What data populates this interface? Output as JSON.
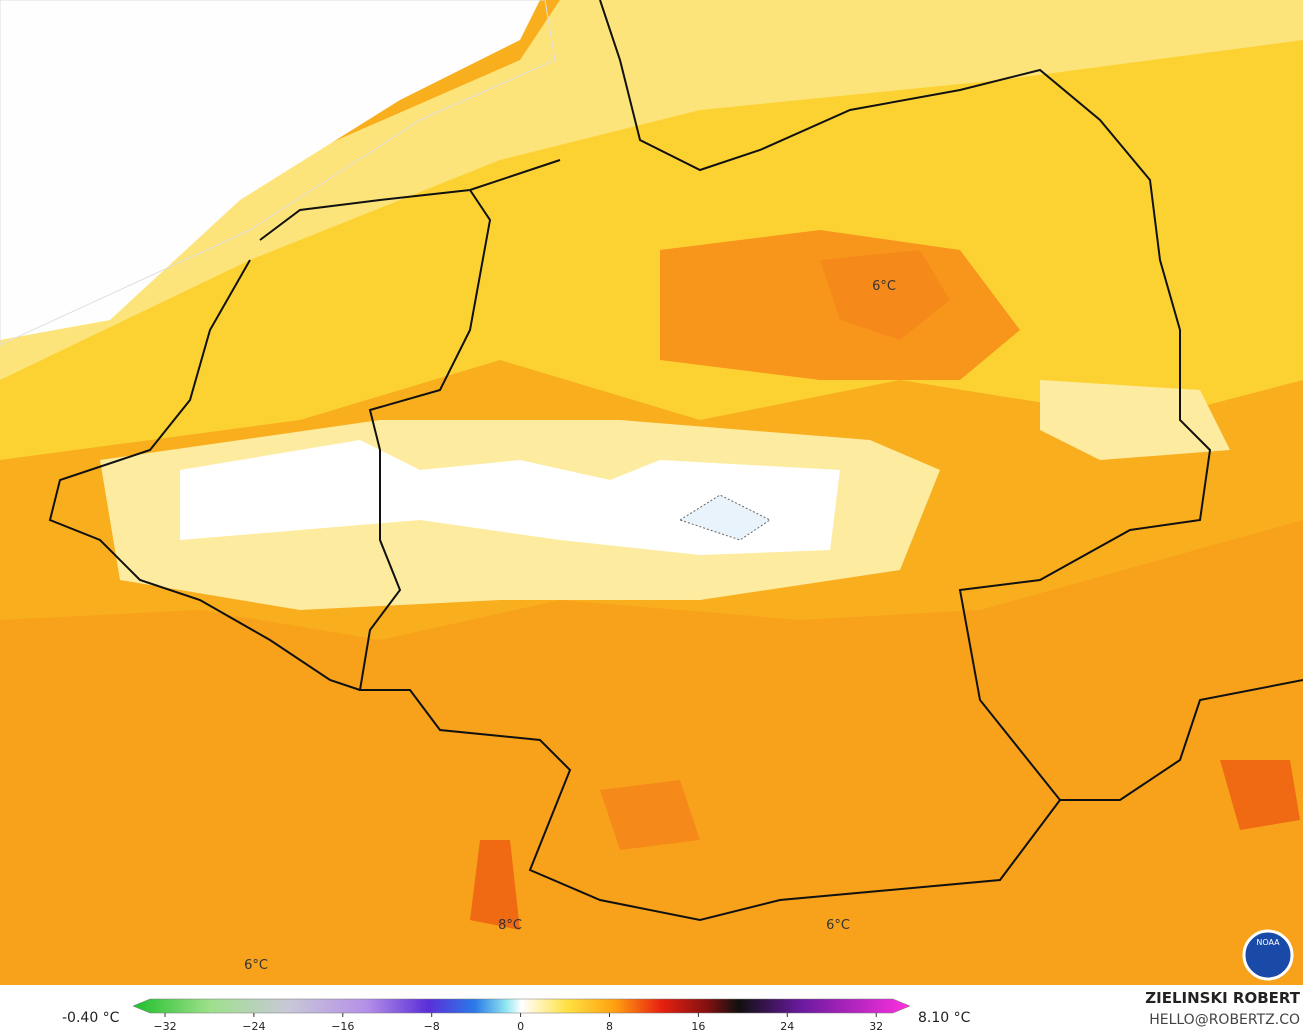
{
  "map": {
    "labels": [
      {
        "text": "6°C"
      },
      {
        "text": "8°C"
      },
      {
        "text": "6°C"
      },
      {
        "text": "6°C"
      }
    ]
  },
  "colorbar": {
    "min_label": "-0.40 °C",
    "max_label": "8.10 °C",
    "ticks": [
      "−32",
      "−24",
      "−16",
      "−8",
      "0",
      "8",
      "16",
      "24",
      "32"
    ]
  },
  "logo": {
    "text": "NOAA"
  },
  "credit": {
    "name": "ZIELINSKI ROBERT",
    "email": "HELLO@ROBERTZ.CO"
  }
}
